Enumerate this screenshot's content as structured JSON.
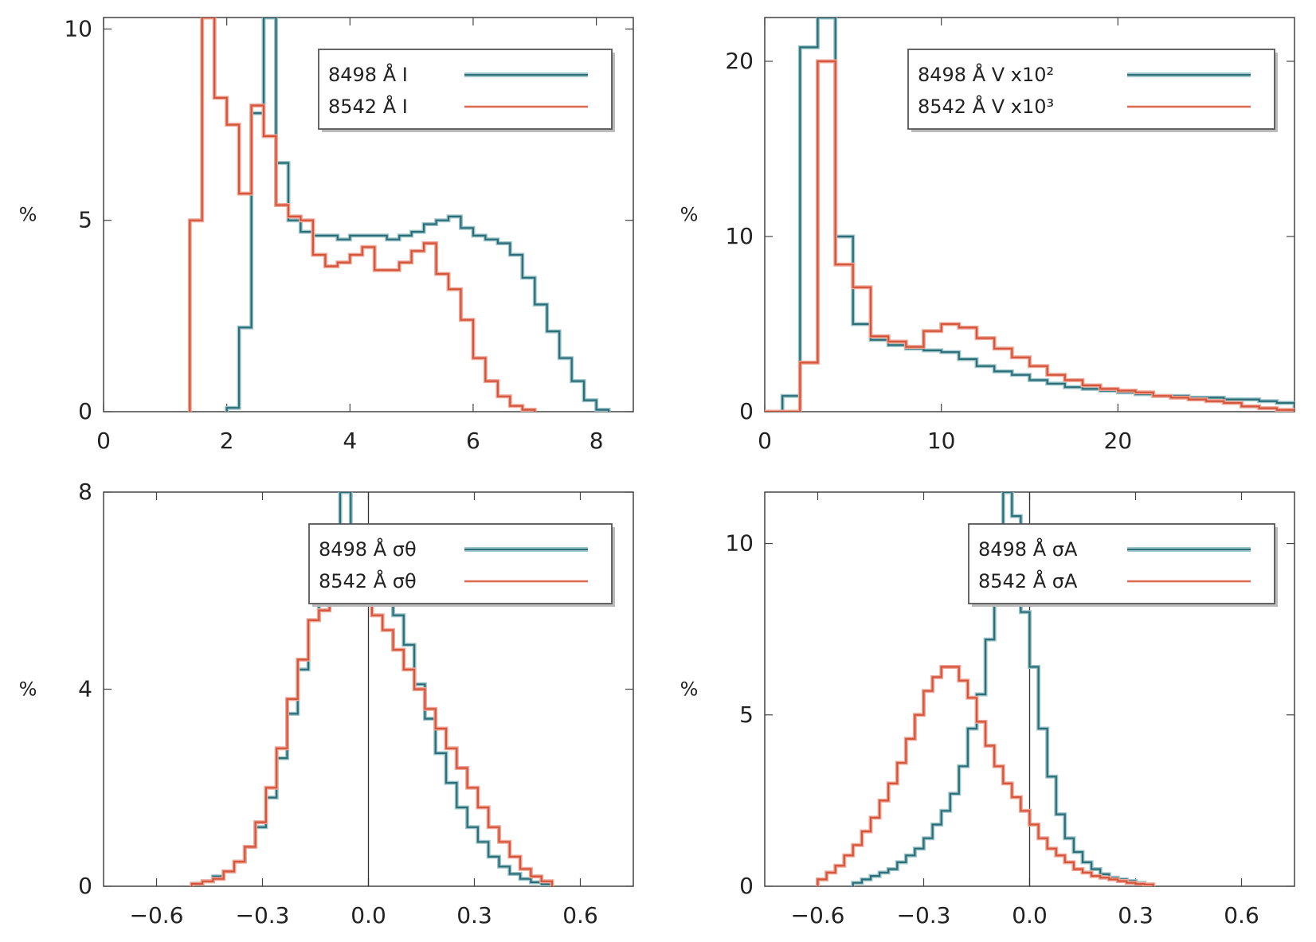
{
  "colors": {
    "series_a": "#2c6e78",
    "series_a_light": "#9cc6ca",
    "series_b": "#d2553c",
    "series_b_light": "#f2a898",
    "axis": "#444444",
    "legend_frame": "#555555"
  },
  "chart_data": [
    {
      "type": "histogram",
      "xlabel": "",
      "ylabel": "%",
      "xlim": [
        0,
        8.6
      ],
      "ylim": [
        0,
        10.3
      ],
      "xticks": [
        "0",
        "2",
        "4",
        "6",
        "8"
      ],
      "yticks": [
        "0",
        "5",
        "10"
      ],
      "legend_position": "top-right",
      "series": [
        {
          "name": "8498 Å   I",
          "bins_start": 2.0,
          "bin_width": 0.2,
          "values": [
            0.1,
            2.2,
            7.8,
            10.3,
            6.5,
            5.0,
            4.7,
            4.6,
            4.6,
            4.5,
            4.6,
            4.6,
            4.6,
            4.5,
            4.6,
            4.7,
            4.9,
            5.0,
            5.1,
            4.8,
            4.6,
            4.5,
            4.4,
            4.1,
            3.5,
            2.8,
            2.1,
            1.4,
            0.8,
            0.3,
            0.05
          ]
        },
        {
          "name": "8542 Å   I",
          "bins_start": 1.4,
          "bin_width": 0.2,
          "values": [
            5.0,
            10.3,
            8.2,
            7.5,
            5.7,
            8.0,
            7.2,
            5.4,
            5.1,
            5.0,
            4.1,
            3.8,
            3.9,
            4.1,
            4.3,
            3.7,
            3.7,
            3.9,
            4.2,
            4.4,
            3.6,
            3.2,
            2.4,
            1.4,
            0.8,
            0.4,
            0.15,
            0.05
          ]
        }
      ]
    },
    {
      "type": "histogram",
      "xlabel": "",
      "ylabel": "%",
      "xlim": [
        0,
        30
      ],
      "ylim": [
        0,
        22.5
      ],
      "xticks": [
        "0",
        "10",
        "20"
      ],
      "yticks": [
        "0",
        "10",
        "20"
      ],
      "legend_position": "top-right",
      "series": [
        {
          "name": "8498 Å   V x10²",
          "bins_start": 0,
          "bin_width": 1,
          "values": [
            0.0,
            0.9,
            20.8,
            22.5,
            10.0,
            5.0,
            4.1,
            3.8,
            3.6,
            3.5,
            3.4,
            3.0,
            2.6,
            2.3,
            2.1,
            1.8,
            1.6,
            1.4,
            1.3,
            1.2,
            1.1,
            1.0,
            0.9,
            0.9,
            0.8,
            0.8,
            0.7,
            0.7,
            0.6,
            0.5
          ]
        },
        {
          "name": "8542 Å   V x10³",
          "bins_start": 0,
          "bin_width": 1,
          "values": [
            0.0,
            0.0,
            2.8,
            20.0,
            8.4,
            7.1,
            4.3,
            4.0,
            3.7,
            4.6,
            5.0,
            4.8,
            4.2,
            3.6,
            3.1,
            2.6,
            2.1,
            1.8,
            1.5,
            1.3,
            1.2,
            1.1,
            0.9,
            0.8,
            0.7,
            0.6,
            0.5,
            0.3,
            0.2,
            0.1
          ]
        }
      ]
    },
    {
      "type": "histogram",
      "xlabel": "",
      "ylabel": "%",
      "xlim": [
        -0.75,
        0.75
      ],
      "ylim": [
        0,
        8
      ],
      "xticks": [
        "−0.6",
        "−0.3",
        "0.0",
        "0.3",
        "0.6"
      ],
      "yticks": [
        "0",
        "4",
        "8"
      ],
      "legend_position": "top-right",
      "vertical_line_at": 0.0,
      "series": [
        {
          "name": "8498 Å σθ",
          "bins_start": -0.5,
          "bin_width": 0.03,
          "values": [
            0.05,
            0.1,
            0.2,
            0.3,
            0.5,
            0.8,
            1.2,
            1.8,
            2.6,
            3.5,
            4.4,
            5.4,
            6.0,
            7.0,
            8.0,
            7.0,
            6.8,
            6.2,
            6.0,
            5.5,
            4.9,
            4.1,
            3.4,
            2.7,
            2.1,
            1.6,
            1.2,
            0.9,
            0.6,
            0.4,
            0.25,
            0.15,
            0.08,
            0.04
          ]
        },
        {
          "name": "8542 Å σθ",
          "bins_start": -0.5,
          "bin_width": 0.03,
          "values": [
            0.05,
            0.1,
            0.15,
            0.3,
            0.5,
            0.8,
            1.3,
            2.0,
            2.8,
            3.8,
            4.6,
            5.4,
            5.6,
            5.9,
            5.9,
            6.0,
            5.8,
            5.5,
            5.2,
            4.8,
            4.4,
            4.0,
            3.6,
            3.2,
            2.8,
            2.4,
            2.0,
            1.6,
            1.2,
            0.9,
            0.6,
            0.35,
            0.2,
            0.1
          ]
        }
      ]
    },
    {
      "type": "histogram",
      "xlabel": "",
      "ylabel": "%",
      "xlim": [
        -0.75,
        0.75
      ],
      "ylim": [
        0,
        11.5
      ],
      "xticks": [
        "−0.6",
        "−0.3",
        "0.0",
        "0.3",
        "0.6"
      ],
      "yticks": [
        "0",
        "5",
        "10"
      ],
      "legend_position": "top-right",
      "vertical_line_at": 0.0,
      "series": [
        {
          "name": "8498 Å σA",
          "bins_start": -0.5,
          "bin_width": 0.025,
          "values": [
            0.1,
            0.2,
            0.3,
            0.4,
            0.5,
            0.7,
            0.9,
            1.1,
            1.4,
            1.8,
            2.2,
            2.7,
            3.5,
            4.6,
            5.6,
            7.2,
            9.5,
            11.5,
            10.8,
            8.0,
            6.4,
            4.6,
            3.2,
            2.1,
            1.4,
            1.0,
            0.7,
            0.5,
            0.35,
            0.25,
            0.2,
            0.15,
            0.1,
            0.05
          ]
        },
        {
          "name": "8542 Å σA",
          "bins_start": -0.6,
          "bin_width": 0.025,
          "values": [
            0.2,
            0.4,
            0.6,
            0.9,
            1.2,
            1.6,
            2.0,
            2.5,
            3.0,
            3.6,
            4.3,
            5.0,
            5.7,
            6.1,
            6.4,
            6.4,
            6.0,
            5.5,
            4.8,
            4.1,
            3.5,
            3.0,
            2.6,
            2.2,
            1.8,
            1.4,
            1.1,
            0.9,
            0.7,
            0.5,
            0.4,
            0.3,
            0.25,
            0.2,
            0.15,
            0.1,
            0.07,
            0.05
          ]
        }
      ]
    }
  ]
}
